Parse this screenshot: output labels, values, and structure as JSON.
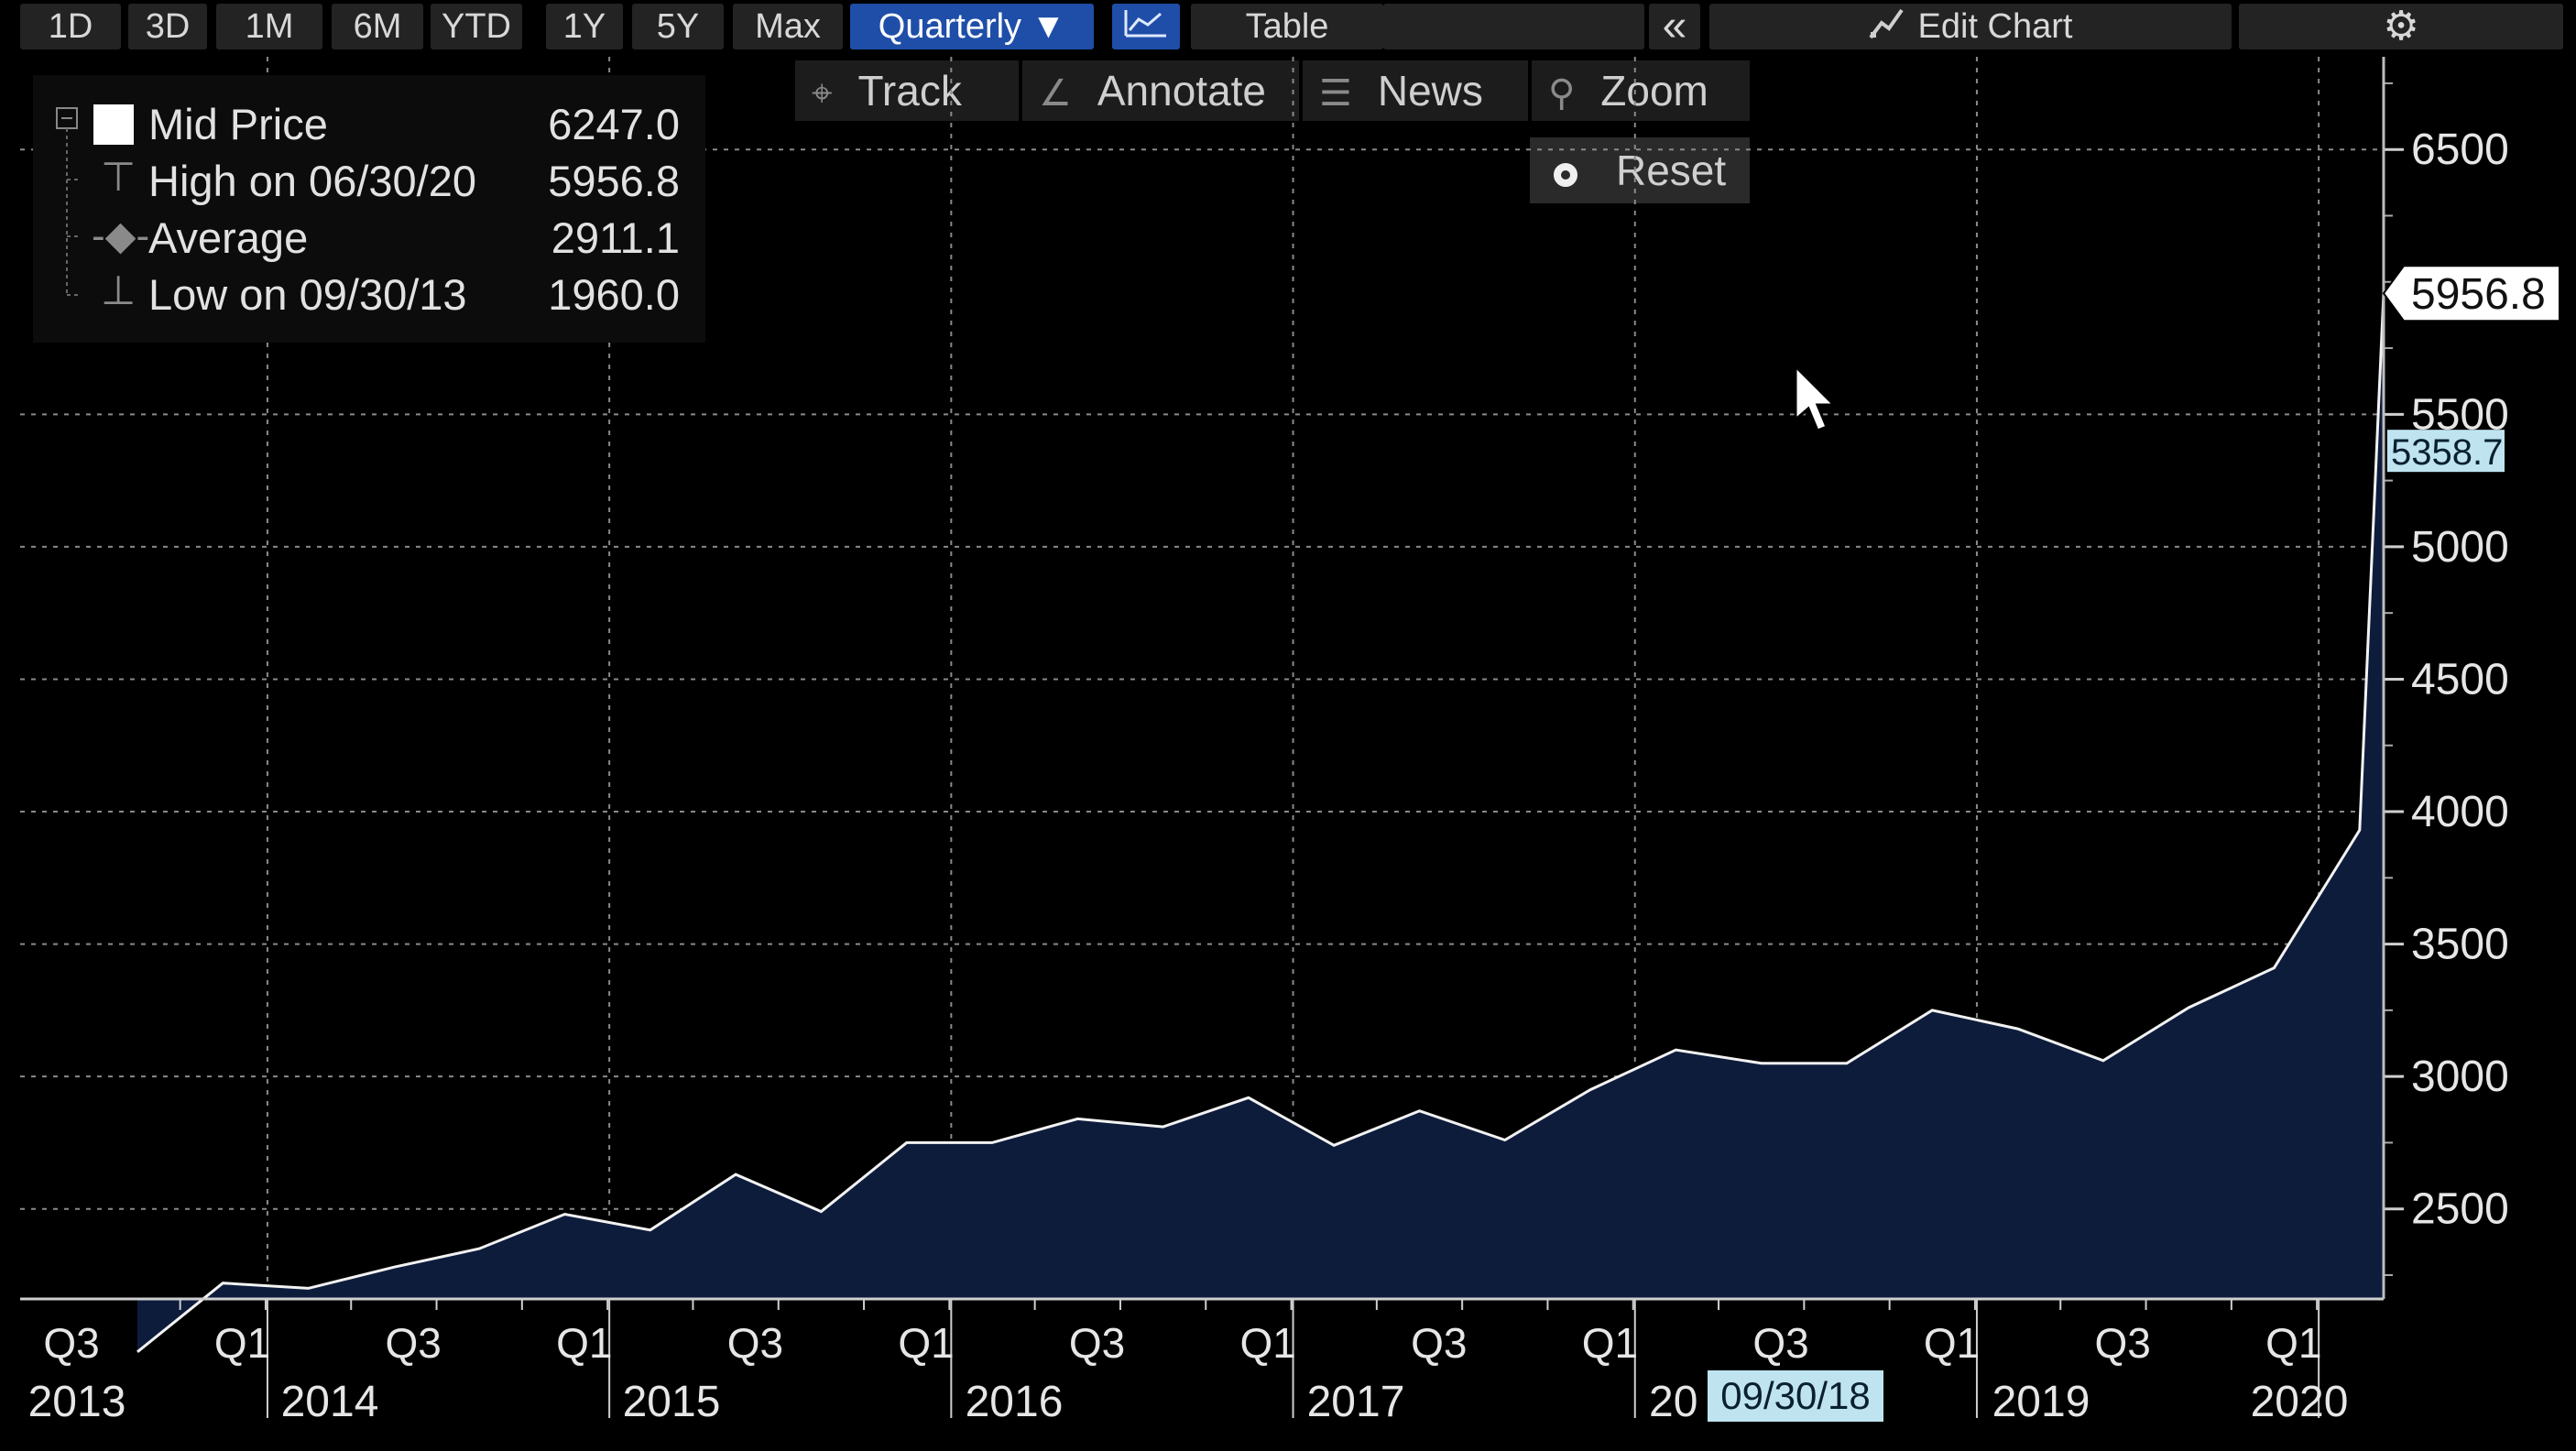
{
  "toolbar": {
    "ranges": [
      "1D",
      "3D",
      "1M",
      "6M",
      "YTD",
      "1Y",
      "5Y",
      "Max"
    ],
    "frequency": "Quarterly ▼",
    "table_label": "Table",
    "collapse_label": "«",
    "edit_chart_label": "Edit Chart"
  },
  "tools": {
    "track": "Track",
    "annotate": "Annotate",
    "news": "News",
    "zoom": "Zoom",
    "reset": "Reset"
  },
  "legend": {
    "mid_label": "Mid Price",
    "mid_value": "6247.0",
    "high_label": "High on 06/30/20",
    "high_value": "5956.8",
    "avg_label": "Average",
    "avg_value": "2911.1",
    "low_label": "Low on 09/30/13",
    "low_value": "1960.0"
  },
  "chart_data": {
    "type": "area",
    "x": [
      "2013-Q3",
      "2013-Q4",
      "2014-Q1",
      "2014-Q2",
      "2014-Q3",
      "2014-Q4",
      "2015-Q1",
      "2015-Q2",
      "2015-Q3",
      "2015-Q4",
      "2016-Q1",
      "2016-Q2",
      "2016-Q3",
      "2016-Q4",
      "2017-Q1",
      "2017-Q2",
      "2017-Q3",
      "2017-Q4",
      "2018-Q1",
      "2018-Q2",
      "2018-Q3",
      "2018-Q4",
      "2019-Q1",
      "2019-Q2",
      "2019-Q3",
      "2019-Q4",
      "2020-Q1",
      "2020-Q2"
    ],
    "series": [
      {
        "values": [
          1960,
          2220,
          2200,
          2280,
          2350,
          2480,
          2420,
          2630,
          2490,
          2750,
          2750,
          2840,
          2810,
          2920,
          2740,
          2870,
          2760,
          2950,
          3100,
          3050,
          3050,
          3250,
          3180,
          3060,
          3260,
          3410,
          3930,
          5956.8
        ]
      }
    ],
    "ylim": [
      2160,
      6850
    ],
    "yticks": [
      2500,
      3000,
      3500,
      4000,
      4500,
      5000,
      5500,
      6500
    ],
    "x_quarter_labels": [
      "Q3",
      "Q1",
      "Q3",
      "Q1",
      "Q3",
      "Q1",
      "Q3",
      "Q1",
      "Q3",
      "Q1",
      "Q3",
      "Q1",
      "Q3",
      "Q1"
    ],
    "x_year_labels": [
      "2013",
      "2014",
      "2015",
      "2016",
      "2017",
      "20",
      "2019",
      "2020"
    ],
    "last_value_label": "5956.8",
    "cursor_value_label": "5358.7",
    "cursor_date_label": "09/30/18",
    "grid": true,
    "line_color": "#f2f2f2",
    "fill_color": "#0e1c3c",
    "value_tag_color": "#bfe4f0"
  }
}
